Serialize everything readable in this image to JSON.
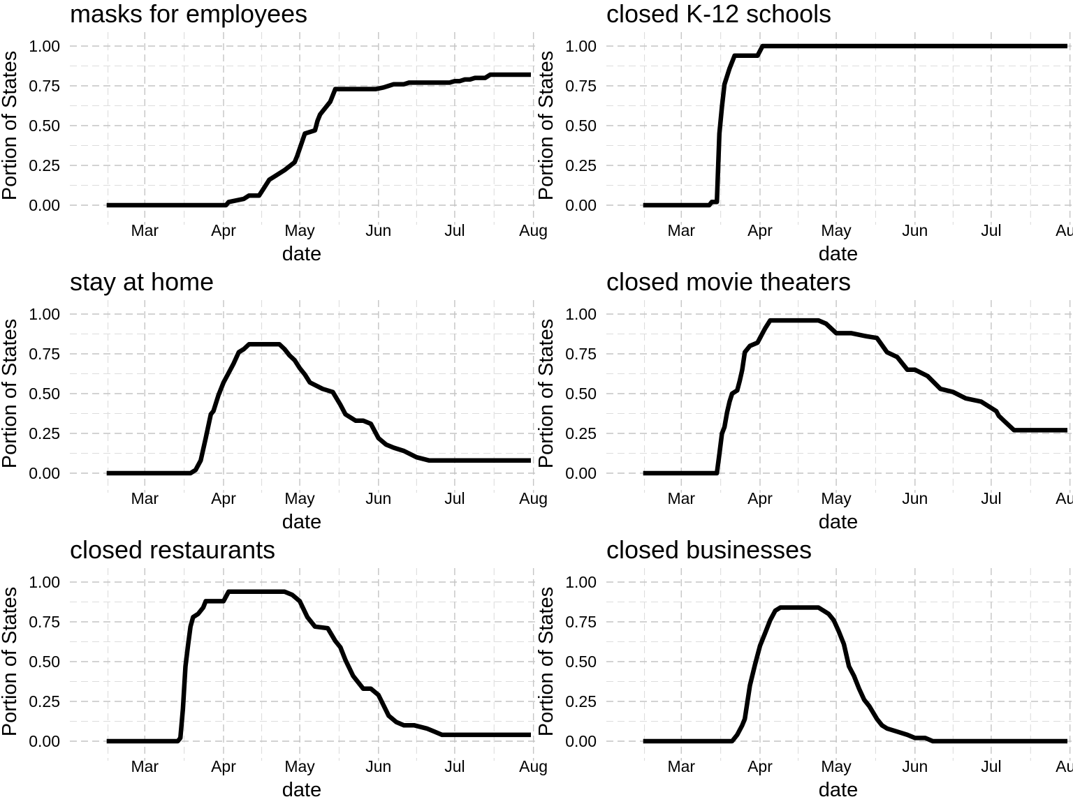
{
  "chart_data": [
    {
      "type": "line",
      "title": "masks for employees",
      "xlabel": "date",
      "ylabel": "Portion of States",
      "ylim": [
        0,
        1
      ],
      "xlim": [
        "2020-02-06",
        "2020-07-31"
      ],
      "x_ticks": [
        "Mar",
        "Apr",
        "May",
        "Jun",
        "Jul",
        "Aug"
      ],
      "y_ticks": [
        "0.00",
        "0.25",
        "0.50",
        "0.75",
        "1.00"
      ],
      "grid": true,
      "x": [
        "2020-02-15",
        "2020-04-02",
        "2020-04-03",
        "2020-04-09",
        "2020-04-11",
        "2020-04-15",
        "2020-04-19",
        "2020-04-21",
        "2020-04-25",
        "2020-04-29",
        "2020-04-30",
        "2020-05-03",
        "2020-05-07",
        "2020-05-08",
        "2020-05-09",
        "2020-05-13",
        "2020-05-15",
        "2020-05-19",
        "2020-05-23",
        "2020-05-29",
        "2020-05-31",
        "2020-06-03",
        "2020-06-05",
        "2020-06-07",
        "2020-06-09",
        "2020-06-11",
        "2020-06-13",
        "2020-06-17",
        "2020-06-19",
        "2020-06-21",
        "2020-06-23",
        "2020-06-25",
        "2020-06-27",
        "2020-06-29",
        "2020-07-01",
        "2020-07-03",
        "2020-07-05",
        "2020-07-07",
        "2020-07-09",
        "2020-07-11",
        "2020-07-13",
        "2020-07-15",
        "2020-07-17",
        "2020-07-19",
        "2020-07-21",
        "2020-07-23",
        "2020-07-25",
        "2020-07-27",
        "2020-07-29",
        "2020-07-31"
      ],
      "series": [
        {
          "values": [
            0.0,
            0.0,
            0.02,
            0.04,
            0.06,
            0.06,
            0.16,
            0.18,
            0.22,
            0.27,
            0.31,
            0.45,
            0.47,
            0.53,
            0.57,
            0.65,
            0.73,
            0.73,
            0.73,
            0.73,
            0.73,
            0.74,
            0.75,
            0.76,
            0.76,
            0.76,
            0.77,
            0.77,
            0.77,
            0.77,
            0.77,
            0.77,
            0.77,
            0.77,
            0.78,
            0.78,
            0.79,
            0.79,
            0.8,
            0.8,
            0.8,
            0.82,
            0.82,
            0.82,
            0.82,
            0.82,
            0.82,
            0.82,
            0.82,
            0.82
          ]
        }
      ]
    },
    {
      "type": "line",
      "title": "closed K-12 schools",
      "xlabel": "date",
      "ylabel": "Portion of States",
      "ylim": [
        0,
        1
      ],
      "xlim": [
        "2020-02-06",
        "2020-07-31"
      ],
      "x_ticks": [
        "Mar",
        "Apr",
        "May",
        "Jun",
        "Jul",
        "Aug"
      ],
      "y_ticks": [
        "0.00",
        "0.25",
        "0.50",
        "0.75",
        "1.00"
      ],
      "grid": true,
      "x": [
        "2020-02-15",
        "2020-03-12",
        "2020-03-13",
        "2020-03-15",
        "2020-03-16",
        "2020-03-17",
        "2020-03-18",
        "2020-03-20",
        "2020-03-22",
        "2020-03-26",
        "2020-03-31",
        "2020-04-02",
        "2020-07-31"
      ],
      "series": [
        {
          "values": [
            0.0,
            0.0,
            0.02,
            0.02,
            0.45,
            0.62,
            0.76,
            0.86,
            0.94,
            0.94,
            0.94,
            1.0,
            1.0
          ]
        }
      ]
    },
    {
      "type": "line",
      "title": "stay at home",
      "xlabel": "date",
      "ylabel": "Portion of States",
      "ylim": [
        0,
        1
      ],
      "xlim": [
        "2020-02-06",
        "2020-07-31"
      ],
      "x_ticks": [
        "Mar",
        "Apr",
        "May",
        "Jun",
        "Jul",
        "Aug"
      ],
      "y_ticks": [
        "0.00",
        "0.25",
        "0.50",
        "0.75",
        "1.00"
      ],
      "grid": true,
      "x": [
        "2020-02-15",
        "2020-03-19",
        "2020-03-21",
        "2020-03-23",
        "2020-03-25",
        "2020-03-27",
        "2020-03-28",
        "2020-03-30",
        "2020-04-01",
        "2020-04-03",
        "2020-04-05",
        "2020-04-07",
        "2020-04-09",
        "2020-04-11",
        "2020-04-13",
        "2020-04-20",
        "2020-04-23",
        "2020-04-25",
        "2020-04-27",
        "2020-04-29",
        "2020-05-01",
        "2020-05-03",
        "2020-05-05",
        "2020-05-10",
        "2020-05-14",
        "2020-05-17",
        "2020-05-19",
        "2020-05-23",
        "2020-05-26",
        "2020-05-29",
        "2020-06-01",
        "2020-06-04",
        "2020-06-07",
        "2020-06-11",
        "2020-06-16",
        "2020-06-21",
        "2020-07-31"
      ],
      "series": [
        {
          "values": [
            0.0,
            0.0,
            0.02,
            0.08,
            0.22,
            0.37,
            0.39,
            0.49,
            0.57,
            0.63,
            0.69,
            0.76,
            0.78,
            0.81,
            0.81,
            0.81,
            0.81,
            0.78,
            0.74,
            0.71,
            0.66,
            0.62,
            0.57,
            0.53,
            0.51,
            0.43,
            0.37,
            0.33,
            0.33,
            0.31,
            0.22,
            0.18,
            0.16,
            0.14,
            0.1,
            0.08,
            0.08
          ]
        }
      ]
    },
    {
      "type": "line",
      "title": "closed movie theaters",
      "xlabel": "date",
      "ylabel": "Portion of States",
      "ylim": [
        0,
        1
      ],
      "xlim": [
        "2020-02-06",
        "2020-07-31"
      ],
      "x_ticks": [
        "Mar",
        "Apr",
        "May",
        "Jun",
        "Jul",
        "Aug"
      ],
      "y_ticks": [
        "0.00",
        "0.25",
        "0.50",
        "0.75",
        "1.00"
      ],
      "grid": true,
      "x": [
        "2020-02-15",
        "2020-03-15",
        "2020-03-16",
        "2020-03-17",
        "2020-03-18",
        "2020-03-19",
        "2020-03-20",
        "2020-03-21",
        "2020-03-23",
        "2020-03-24",
        "2020-03-25",
        "2020-03-26",
        "2020-03-28",
        "2020-03-31",
        "2020-04-01",
        "2020-04-02",
        "2020-04-03",
        "2020-04-05",
        "2020-04-15",
        "2020-04-24",
        "2020-04-27",
        "2020-05-01",
        "2020-05-07",
        "2020-05-13",
        "2020-05-17",
        "2020-05-21",
        "2020-05-25",
        "2020-05-29",
        "2020-06-01",
        "2020-06-06",
        "2020-06-11",
        "2020-06-16",
        "2020-06-21",
        "2020-06-27",
        "2020-07-01",
        "2020-07-03",
        "2020-07-04",
        "2020-07-06",
        "2020-07-10",
        "2020-07-31"
      ],
      "series": [
        {
          "values": [
            0.0,
            0.0,
            0.12,
            0.25,
            0.29,
            0.38,
            0.45,
            0.5,
            0.52,
            0.58,
            0.65,
            0.76,
            0.8,
            0.82,
            0.85,
            0.88,
            0.91,
            0.96,
            0.96,
            0.96,
            0.94,
            0.88,
            0.88,
            0.86,
            0.85,
            0.76,
            0.73,
            0.65,
            0.65,
            0.61,
            0.53,
            0.51,
            0.47,
            0.45,
            0.41,
            0.39,
            0.36,
            0.33,
            0.27,
            0.27
          ]
        }
      ]
    },
    {
      "type": "line",
      "title": "closed restaurants",
      "xlabel": "date",
      "ylabel": "Portion of States",
      "ylim": [
        0,
        1
      ],
      "xlim": [
        "2020-02-06",
        "2020-07-31"
      ],
      "x_ticks": [
        "Mar",
        "Apr",
        "May",
        "Jun",
        "Jul",
        "Aug"
      ],
      "y_ticks": [
        "0.00",
        "0.25",
        "0.50",
        "0.75",
        "1.00"
      ],
      "grid": true,
      "x": [
        "2020-02-15",
        "2020-03-14",
        "2020-03-15",
        "2020-03-16",
        "2020-03-17",
        "2020-03-18",
        "2020-03-19",
        "2020-03-20",
        "2020-03-22",
        "2020-03-24",
        "2020-03-25",
        "2020-03-29",
        "2020-04-01",
        "2020-04-03",
        "2020-04-15",
        "2020-04-22",
        "2020-04-25",
        "2020-04-28",
        "2020-05-01",
        "2020-05-04",
        "2020-05-07",
        "2020-05-12",
        "2020-05-15",
        "2020-05-17",
        "2020-05-19",
        "2020-05-22",
        "2020-05-26",
        "2020-05-29",
        "2020-06-01",
        "2020-06-05",
        "2020-06-08",
        "2020-06-11",
        "2020-06-15",
        "2020-06-20",
        "2020-06-23",
        "2020-06-26",
        "2020-07-31"
      ],
      "series": [
        {
          "values": [
            0.0,
            0.0,
            0.02,
            0.2,
            0.47,
            0.6,
            0.72,
            0.78,
            0.8,
            0.84,
            0.88,
            0.88,
            0.88,
            0.94,
            0.94,
            0.94,
            0.94,
            0.92,
            0.88,
            0.78,
            0.72,
            0.71,
            0.63,
            0.59,
            0.51,
            0.41,
            0.33,
            0.33,
            0.29,
            0.16,
            0.12,
            0.1,
            0.1,
            0.08,
            0.06,
            0.04,
            0.04
          ]
        }
      ]
    },
    {
      "type": "line",
      "title": "closed businesses",
      "xlabel": "date",
      "ylabel": "Portion of States",
      "ylim": [
        0,
        1
      ],
      "xlim": [
        "2020-02-06",
        "2020-07-31"
      ],
      "x_ticks": [
        "Mar",
        "Apr",
        "May",
        "Jun",
        "Jul",
        "Aug"
      ],
      "y_ticks": [
        "0.00",
        "0.25",
        "0.50",
        "0.75",
        "1.00"
      ],
      "grid": true,
      "x": [
        "2020-02-15",
        "2020-03-21",
        "2020-03-23",
        "2020-03-25",
        "2020-03-26",
        "2020-03-28",
        "2020-03-30",
        "2020-04-01",
        "2020-04-03",
        "2020-04-05",
        "2020-04-07",
        "2020-04-09",
        "2020-04-24",
        "2020-04-26",
        "2020-04-28",
        "2020-04-30",
        "2020-05-02",
        "2020-05-04",
        "2020-05-06",
        "2020-05-08",
        "2020-05-10",
        "2020-05-12",
        "2020-05-14",
        "2020-05-17",
        "2020-05-19",
        "2020-05-21",
        "2020-05-25",
        "2020-05-29",
        "2020-06-01",
        "2020-06-05",
        "2020-06-08",
        "2020-07-31"
      ],
      "series": [
        {
          "values": [
            0.0,
            0.0,
            0.04,
            0.1,
            0.14,
            0.35,
            0.48,
            0.6,
            0.68,
            0.76,
            0.82,
            0.84,
            0.84,
            0.82,
            0.8,
            0.76,
            0.69,
            0.61,
            0.47,
            0.41,
            0.33,
            0.26,
            0.22,
            0.14,
            0.1,
            0.08,
            0.06,
            0.04,
            0.02,
            0.02,
            0.0,
            0.0
          ]
        }
      ]
    }
  ]
}
